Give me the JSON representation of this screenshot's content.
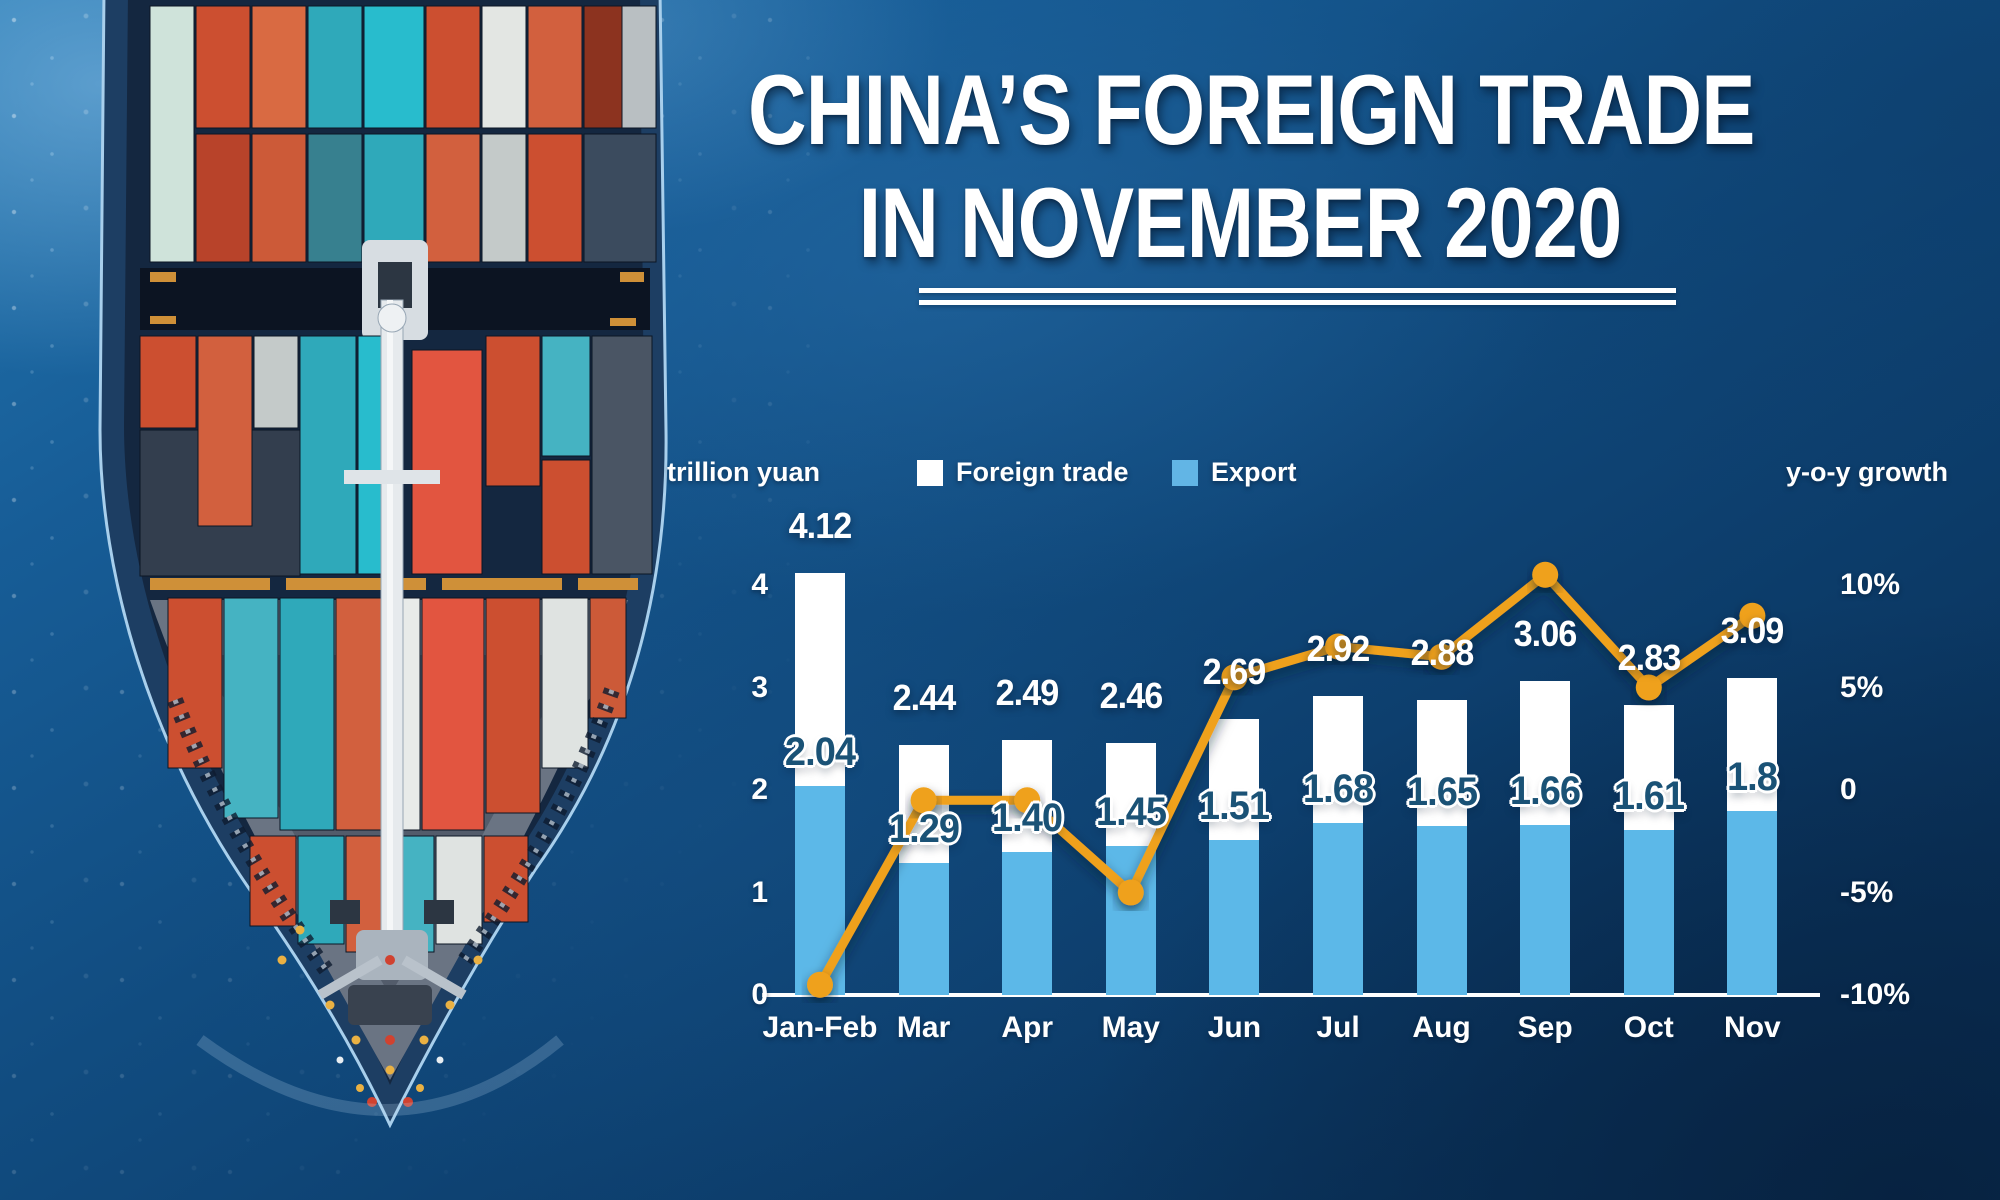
{
  "title": {
    "line1": "CHINA’S FOREIGN TRADE",
    "line2": "IN NOVEMBER 2020"
  },
  "legend": {
    "left_axis_caption": "trillion yuan",
    "right_axis_caption": "y-o-y growth",
    "series": [
      {
        "label": "Foreign trade",
        "swatch_color": "#ffffff"
      },
      {
        "label": "Export",
        "swatch_color": "#62b5e5"
      }
    ]
  },
  "chart_data": {
    "type": "combo-bar-line",
    "categories": [
      "Jan-Feb",
      "Mar",
      "Apr",
      "May",
      "Jun",
      "Jul",
      "Aug",
      "Sep",
      "Oct",
      "Nov"
    ],
    "series": [
      {
        "name": "Foreign trade",
        "type": "bar",
        "unit": "trillion yuan",
        "color": "#ffffff",
        "values": [
          4.12,
          2.44,
          2.49,
          2.46,
          2.69,
          2.92,
          2.88,
          3.06,
          2.83,
          3.09
        ]
      },
      {
        "name": "Export",
        "type": "bar",
        "unit": "trillion yuan",
        "color": "#5cb8e8",
        "values": [
          2.04,
          1.29,
          1.4,
          1.45,
          1.51,
          1.68,
          1.65,
          1.66,
          1.61,
          1.8
        ]
      },
      {
        "name": "y-o-y growth",
        "type": "line",
        "unit": "%",
        "color": "#efa11c",
        "estimated_from_chart": true,
        "values": [
          -9.5,
          -0.5,
          -0.5,
          -5,
          5.5,
          7,
          6.5,
          10.5,
          5,
          8.5
        ]
      }
    ],
    "bar_labels": {
      "foreign_trade": [
        "4.12",
        "2.44",
        "2.49",
        "2.46",
        "2.69",
        "2.92",
        "2.88",
        "3.06",
        "2.83",
        "3.09"
      ],
      "export": [
        "2.04",
        "1.29",
        "1.40",
        "1.45",
        "1.51",
        "1.68",
        "1.65",
        "1.66",
        "1.61",
        "1.8"
      ]
    },
    "left_axis": {
      "label": "trillion yuan",
      "ticks": [
        "0",
        "1",
        "2",
        "3",
        "4"
      ],
      "range": [
        0,
        4
      ]
    },
    "right_axis": {
      "label": "y-o-y growth",
      "ticks": [
        "-10%",
        "-5%",
        "0",
        "5%",
        "10%"
      ],
      "range": [
        -10,
        10
      ]
    },
    "grid": false,
    "legend_position": "top"
  },
  "colors": {
    "background_navy": "#0f4373",
    "bar_foreign_trade": "#ffffff",
    "bar_export": "#5cb8e8",
    "growth_line_orange": "#efa11c",
    "export_label_text": "#1a5276",
    "axis_text": "#ffffff"
  }
}
